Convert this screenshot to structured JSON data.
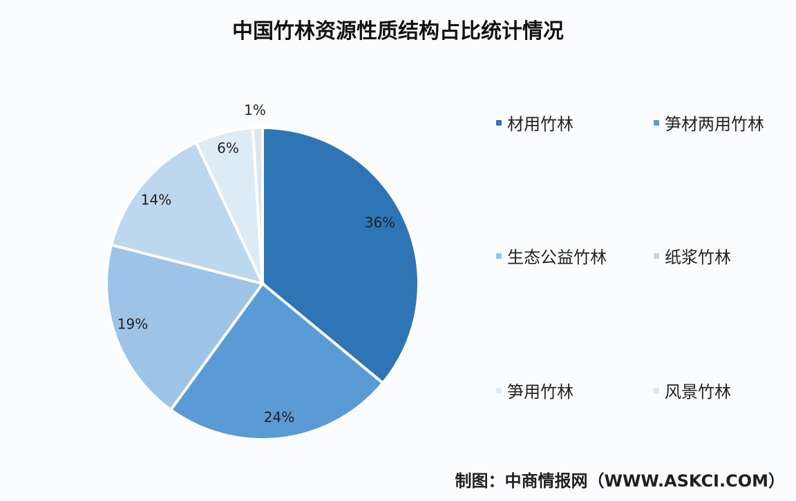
{
  "chart_data": {
    "type": "pie",
    "title": "中国竹林资源性质结构占比统计情况",
    "categories": [
      "材用竹林",
      "笋材两用竹林",
      "生态公益竹林",
      "纸浆竹林",
      "笋用竹林",
      "风景竹林"
    ],
    "values": [
      36,
      24,
      19,
      14,
      6,
      1
    ],
    "data_labels": [
      "36%",
      "24%",
      "19%",
      "14%",
      "6%",
      "1%"
    ],
    "colors": [
      "#2E75B6",
      "#5B9BD5",
      "#9DC3E6",
      "#BDD7EE",
      "#DDEBF7",
      "#DCE6F2"
    ],
    "legend_position": "right"
  },
  "source_note": "制图：中商情报网（WWW.ASKCI.COM）"
}
